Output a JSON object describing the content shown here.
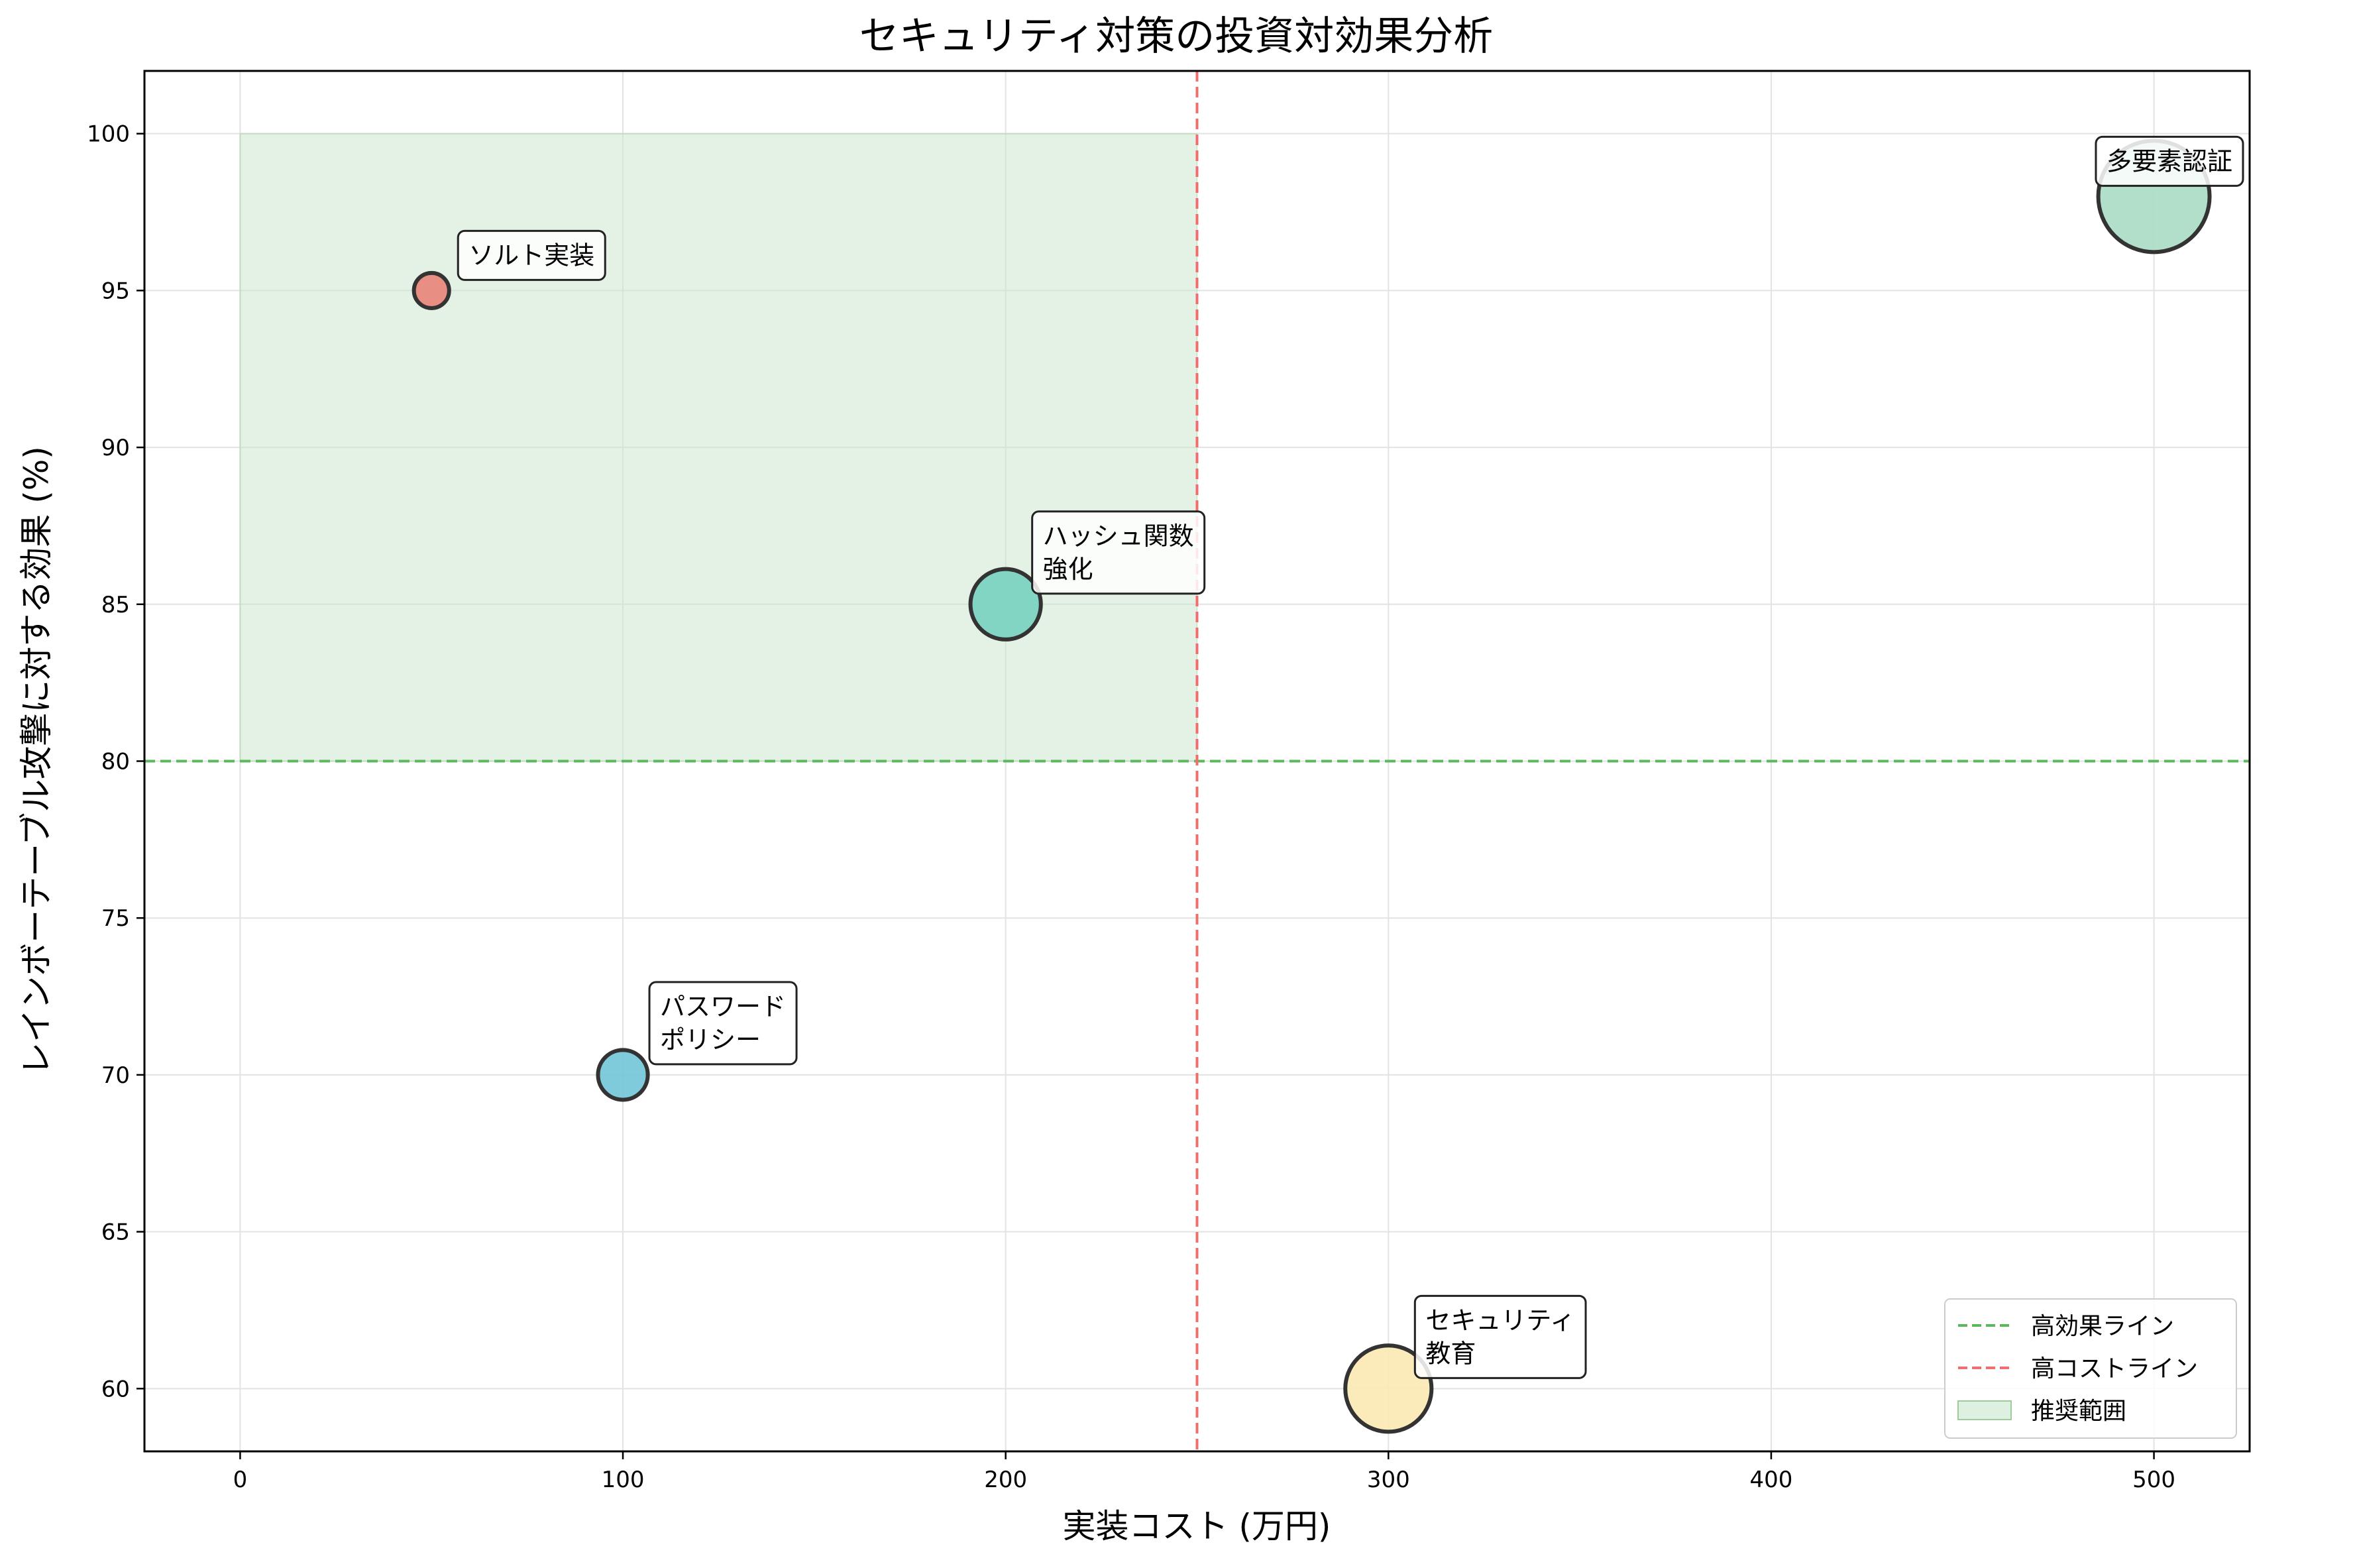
{
  "chart_data": {
    "type": "scatter",
    "title": "セキュリティ対策の投資対効果分析",
    "xlabel": "実装コスト (万円)",
    "ylabel": "レインボーテーブル攻撃に対する効果 (%)",
    "xlim": [
      -25,
      525
    ],
    "ylim": [
      58,
      102
    ],
    "xticks": [
      "0",
      "100",
      "200",
      "300",
      "400",
      "500"
    ],
    "yticks": [
      "60",
      "65",
      "70",
      "75",
      "80",
      "85",
      "90",
      "95",
      "100"
    ],
    "grid": true,
    "legend_position": "lower-right",
    "points": [
      {
        "label": "ソルト実装",
        "x": 50,
        "y": 95,
        "size": 50,
        "color": "#e8857a"
      },
      {
        "label": "パスワード\nポリシー",
        "x": 100,
        "y": 70,
        "size": 100,
        "color": "#74c6d8"
      },
      {
        "label": "ハッシュ関数\n強化",
        "x": 200,
        "y": 85,
        "size": 200,
        "color": "#79d2c0"
      },
      {
        "label": "セキュリティ\n教育",
        "x": 300,
        "y": 60,
        "size": 300,
        "color": "#fbe9b4"
      },
      {
        "label": "多要素認証",
        "x": 500,
        "y": 98,
        "size": 500,
        "color": "#aadcc6"
      }
    ],
    "reference_lines": [
      {
        "orientation": "horizontal",
        "value": 80,
        "color": "#5cb85c",
        "style": "dashed",
        "name": "高効果ライン"
      },
      {
        "orientation": "vertical",
        "value": 250,
        "color": "#f26d6d",
        "style": "dashed",
        "name": "高コストライン"
      }
    ],
    "recommended_region": {
      "x": [
        0,
        250
      ],
      "y": [
        80,
        100
      ],
      "color": "#c8e6c9",
      "name": "推奨範囲"
    },
    "legend": [
      "高効果ライン",
      "高コストライン",
      "推奨範囲"
    ]
  }
}
